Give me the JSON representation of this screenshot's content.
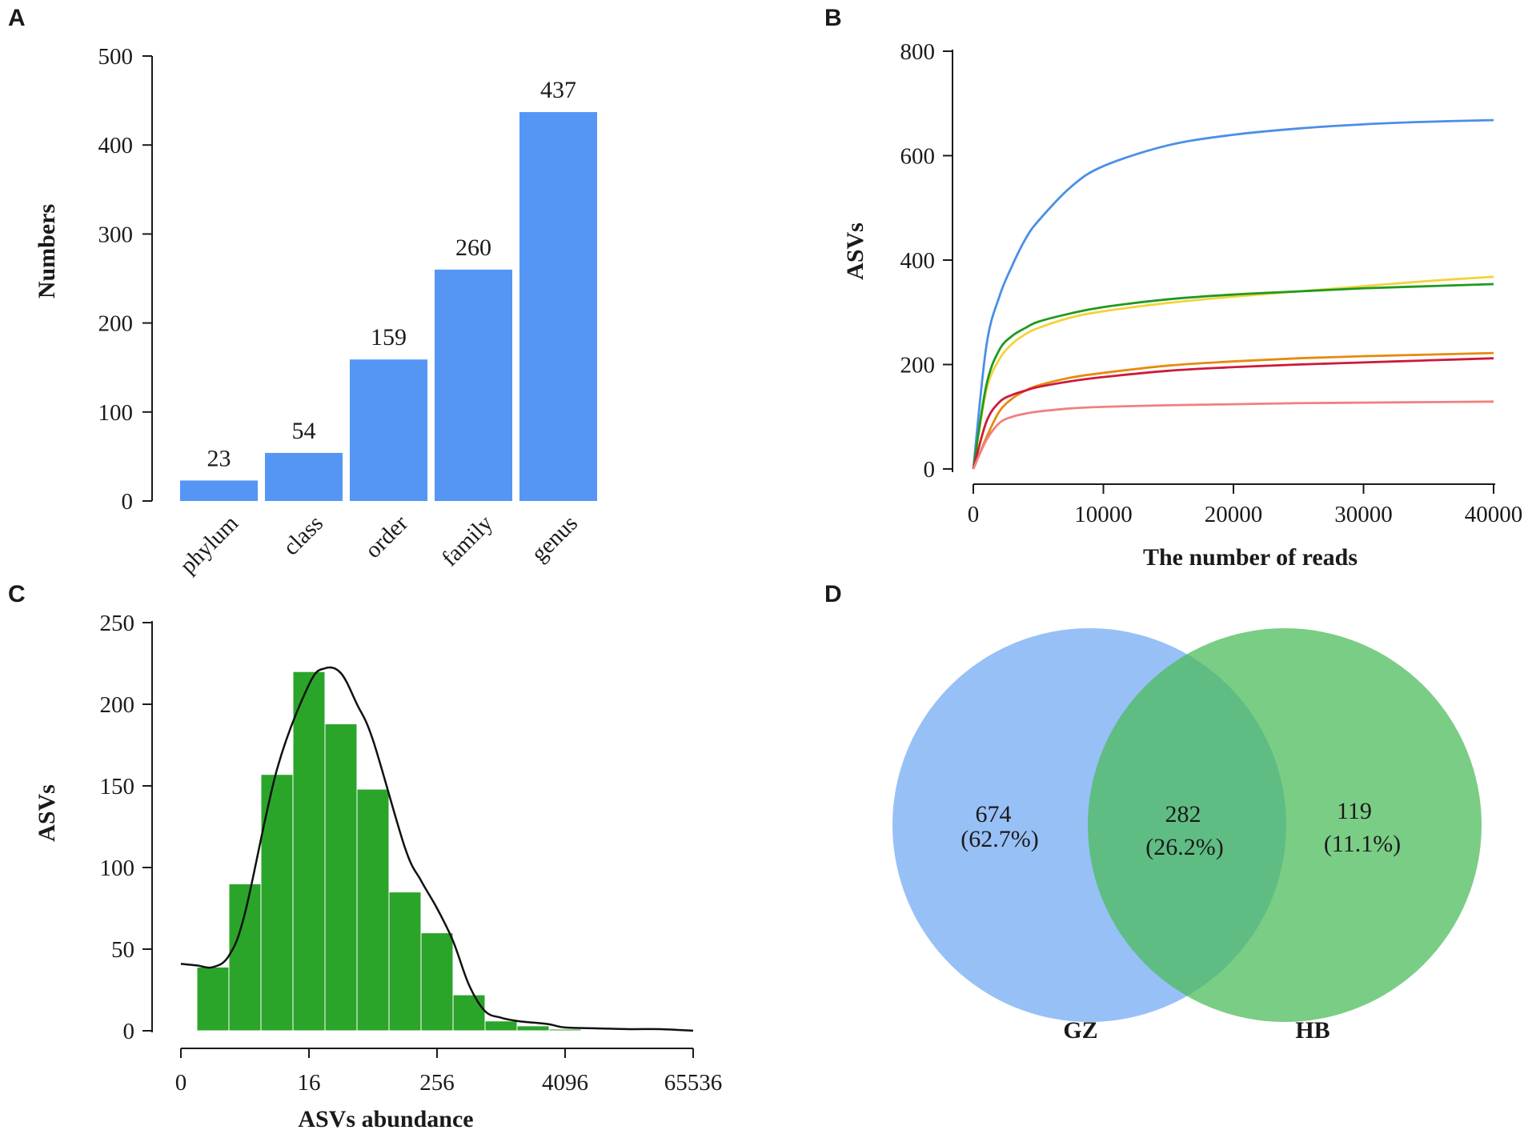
{
  "chart_data": [
    {
      "panel": "A",
      "type": "bar",
      "categories": [
        "phylum",
        "class",
        "order",
        "family",
        "genus"
      ],
      "values": [
        23,
        54,
        159,
        260,
        437
      ],
      "data_labels": [
        "23",
        "54",
        "159",
        "260",
        "437"
      ],
      "ylabel": "Numbers",
      "xlabel": "",
      "ylim": [
        0,
        500
      ],
      "yticks": [
        0,
        100,
        200,
        300,
        400,
        500
      ],
      "bar_color": "#5596f5"
    },
    {
      "panel": "B",
      "type": "line",
      "xlabel": "The number of reads",
      "ylabel": "ASVs",
      "xlim": [
        0,
        40000
      ],
      "ylim": [
        0,
        800
      ],
      "xticks": [
        0,
        10000,
        20000,
        30000,
        40000
      ],
      "yticks": [
        0,
        200,
        400,
        600,
        800
      ],
      "x": [
        0,
        1000,
        2000,
        3000,
        4000,
        5000,
        7500,
        10000,
        15000,
        20000,
        25000,
        30000,
        35000,
        40000
      ],
      "series": [
        {
          "name": "blue",
          "color": "#4a8fe6",
          "values": [
            0,
            235,
            330,
            390,
            440,
            475,
            540,
            580,
            620,
            640,
            652,
            660,
            665,
            668
          ]
        },
        {
          "name": "yellow",
          "color": "#f2d33c",
          "values": [
            0,
            150,
            210,
            240,
            258,
            270,
            290,
            302,
            318,
            330,
            340,
            350,
            360,
            368
          ]
        },
        {
          "name": "green",
          "color": "#1e9a1e",
          "values": [
            0,
            160,
            228,
            255,
            270,
            282,
            298,
            310,
            325,
            334,
            340,
            346,
            350,
            354
          ]
        },
        {
          "name": "orange",
          "color": "#e68a0f",
          "values": [
            0,
            60,
            110,
            135,
            150,
            160,
            175,
            184,
            198,
            206,
            212,
            216,
            219,
            222
          ]
        },
        {
          "name": "red",
          "color": "#cc1a3a",
          "values": [
            0,
            90,
            128,
            142,
            150,
            157,
            168,
            176,
            188,
            195,
            200,
            204,
            208,
            212
          ]
        },
        {
          "name": "pink",
          "color": "#f08080",
          "values": [
            0,
            55,
            88,
            100,
            106,
            110,
            116,
            119,
            122,
            124,
            126,
            127,
            128,
            129
          ]
        }
      ]
    },
    {
      "panel": "C",
      "type": "bar",
      "xlabel": "ASVs abundance",
      "ylabel": "ASVs",
      "ylim": [
        0,
        250
      ],
      "yticks": [
        0,
        50,
        100,
        150,
        200,
        250
      ],
      "xscale": "log2",
      "xticks": [
        0,
        16,
        256,
        4096,
        65536
      ],
      "bin_width_log2": 1,
      "bin_start_log2": [
        1,
        2,
        3,
        4,
        5,
        6,
        7,
        8,
        9,
        10,
        11,
        12
      ],
      "values": [
        39,
        90,
        157,
        220,
        188,
        148,
        85,
        60,
        22,
        6,
        3,
        1
      ],
      "bar_color": "#2aa52a",
      "density_curve": {
        "x_log2": [
          0,
          0.5,
          1,
          1.5,
          2,
          3,
          4,
          4.5,
          5,
          5.5,
          6,
          7,
          7.5,
          8,
          8.5,
          9,
          9.5,
          10,
          10.5,
          11,
          11.5,
          12,
          13,
          14,
          15,
          16
        ],
        "y": [
          41,
          40,
          39,
          46,
          72,
          160,
          212,
          222,
          219,
          200,
          178,
          112,
          92,
          75,
          55,
          28,
          12,
          8,
          6,
          5,
          4,
          2,
          1.5,
          1,
          1,
          0
        ],
        "color": "#111111"
      }
    },
    {
      "panel": "D",
      "type": "venn",
      "sets": [
        {
          "name": "GZ",
          "color": "#7aaef5"
        },
        {
          "name": "HB",
          "color": "#4cbb5a"
        }
      ],
      "regions": [
        {
          "id": "GZ_only",
          "count": "674",
          "percent": "(62.7%)"
        },
        {
          "id": "overlap",
          "count": "282",
          "percent": "(26.2%)"
        },
        {
          "id": "HB_only",
          "count": "119",
          "percent": "(11.1%)"
        }
      ]
    }
  ],
  "panels": {
    "a": {
      "letter": "A"
    },
    "b": {
      "letter": "B"
    },
    "c": {
      "letter": "C"
    },
    "d": {
      "letter": "D"
    }
  }
}
